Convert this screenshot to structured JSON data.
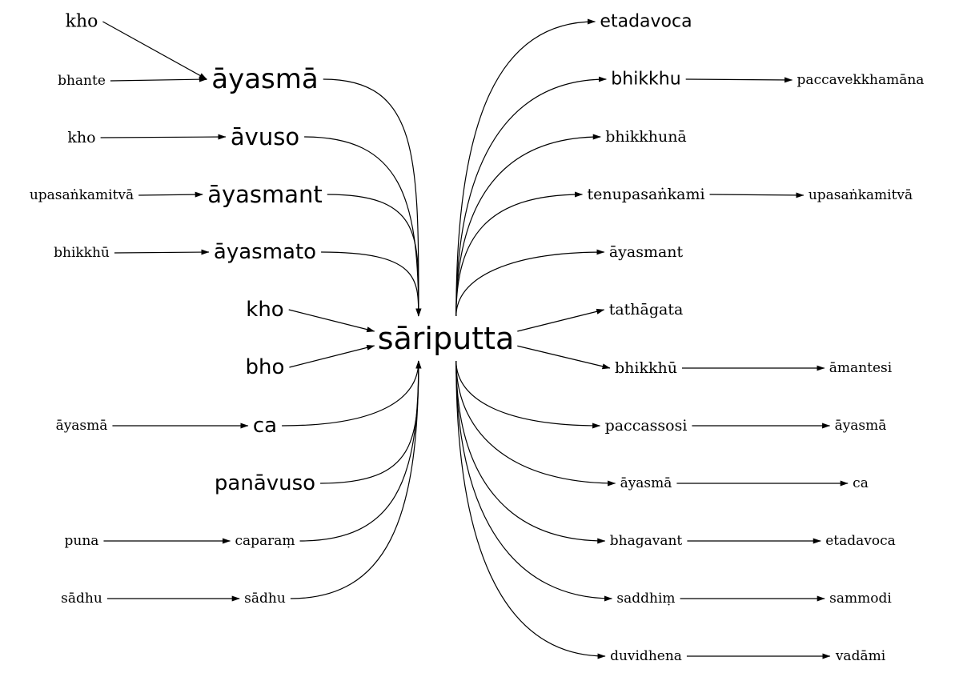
{
  "center": "sāriputta",
  "nodes": [
    {
      "id": "kho_a",
      "label": "kho"
    },
    {
      "id": "bhante",
      "label": "bhante"
    },
    {
      "id": "kho_b",
      "label": "kho"
    },
    {
      "id": "upasankamitva_l",
      "label": "upasaṅkamitvā"
    },
    {
      "id": "bhikkhu_l",
      "label": "bhikkhū"
    },
    {
      "id": "ayasma_l",
      "label": "āyasmā"
    },
    {
      "id": "puna",
      "label": "puna"
    },
    {
      "id": "sadhu_l",
      "label": "sādhu"
    },
    {
      "id": "ayasma_big",
      "label": "āyasmā"
    },
    {
      "id": "avuso",
      "label": "āvuso"
    },
    {
      "id": "ayasmant_big",
      "label": "āyasmant"
    },
    {
      "id": "ayasmato",
      "label": "āyasmato"
    },
    {
      "id": "kho_c",
      "label": "kho"
    },
    {
      "id": "bho",
      "label": "bho"
    },
    {
      "id": "ca_l",
      "label": "ca"
    },
    {
      "id": "panavuso",
      "label": "panāvuso"
    },
    {
      "id": "caparam",
      "label": "caparaṃ"
    },
    {
      "id": "sadhu_m",
      "label": "sādhu"
    },
    {
      "id": "etadavoca_top",
      "label": "etadavoca"
    },
    {
      "id": "bhikkhu_r",
      "label": "bhikkhu"
    },
    {
      "id": "bhikkhuna",
      "label": "bhikkhunā"
    },
    {
      "id": "tenupasankami",
      "label": "tenupasaṅkami"
    },
    {
      "id": "ayasmant_r",
      "label": "āyasmant"
    },
    {
      "id": "tathagata",
      "label": "tathāgata"
    },
    {
      "id": "bhikkhu_r2",
      "label": "bhikkhū"
    },
    {
      "id": "paccassosi",
      "label": "paccassosi"
    },
    {
      "id": "ayasma_r",
      "label": "āyasmā"
    },
    {
      "id": "bhagavant",
      "label": "bhagavant"
    },
    {
      "id": "saddhim",
      "label": "saddhiṃ"
    },
    {
      "id": "duvidhena",
      "label": "duvidhena"
    },
    {
      "id": "paccavekkhamana",
      "label": "paccavekkhamāna"
    },
    {
      "id": "upasankamitva_r",
      "label": "upasaṅkamitvā"
    },
    {
      "id": "amantesi",
      "label": "āmantesi"
    },
    {
      "id": "ayasma_rr",
      "label": "āyasmā"
    },
    {
      "id": "ca_r",
      "label": "ca"
    },
    {
      "id": "etadavoca_r",
      "label": "etadavoca"
    },
    {
      "id": "sammodi",
      "label": "sammodi"
    },
    {
      "id": "vadami",
      "label": "vadāmi"
    }
  ],
  "edges": [
    {
      "from": "kho_a",
      "to": "ayasma_big"
    },
    {
      "from": "bhante",
      "to": "ayasma_big"
    },
    {
      "from": "kho_b",
      "to": "avuso"
    },
    {
      "from": "upasankamitva_l",
      "to": "ayasmant_big"
    },
    {
      "from": "bhikkhu_l",
      "to": "ayasmato"
    },
    {
      "from": "ayasma_l",
      "to": "ca_l"
    },
    {
      "from": "puna",
      "to": "caparam"
    },
    {
      "from": "sadhu_l",
      "to": "sadhu_m"
    },
    {
      "from": "ayasma_big",
      "to": "center"
    },
    {
      "from": "avuso",
      "to": "center"
    },
    {
      "from": "ayasmant_big",
      "to": "center"
    },
    {
      "from": "ayasmato",
      "to": "center"
    },
    {
      "from": "kho_c",
      "to": "center"
    },
    {
      "from": "bho",
      "to": "center"
    },
    {
      "from": "ca_l",
      "to": "center"
    },
    {
      "from": "panavuso",
      "to": "center"
    },
    {
      "from": "caparam",
      "to": "center"
    },
    {
      "from": "sadhu_m",
      "to": "center"
    },
    {
      "from": "center",
      "to": "etadavoca_top"
    },
    {
      "from": "center",
      "to": "bhikkhu_r"
    },
    {
      "from": "center",
      "to": "bhikkhuna"
    },
    {
      "from": "center",
      "to": "tenupasankami"
    },
    {
      "from": "center",
      "to": "ayasmant_r"
    },
    {
      "from": "center",
      "to": "tathagata"
    },
    {
      "from": "center",
      "to": "bhikkhu_r2"
    },
    {
      "from": "center",
      "to": "paccassosi"
    },
    {
      "from": "center",
      "to": "ayasma_r"
    },
    {
      "from": "center",
      "to": "bhagavant"
    },
    {
      "from": "center",
      "to": "saddhim"
    },
    {
      "from": "center",
      "to": "duvidhena"
    },
    {
      "from": "bhikkhu_r",
      "to": "paccavekkhamana"
    },
    {
      "from": "tenupasankami",
      "to": "upasankamitva_r"
    },
    {
      "from": "bhikkhu_r2",
      "to": "amantesi"
    },
    {
      "from": "paccassosi",
      "to": "ayasma_rr"
    },
    {
      "from": "ayasma_r",
      "to": "ca_r"
    },
    {
      "from": "bhagavant",
      "to": "etadavoca_r"
    },
    {
      "from": "saddhim",
      "to": "sammodi"
    },
    {
      "from": "duvidhena",
      "to": "vadami"
    }
  ]
}
